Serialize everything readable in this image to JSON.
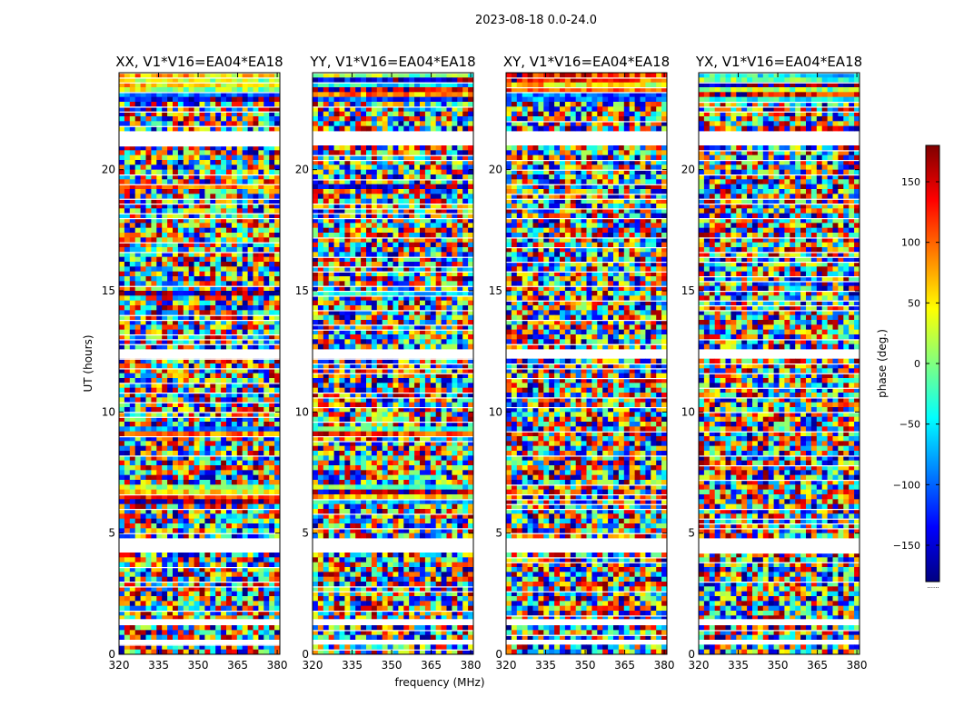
{
  "chart_data": {
    "type": "heatmap",
    "title": "2023-08-18 0.0-24.0",
    "xlabel": "frequency (MHz)",
    "ylabel": "UT (hours)",
    "xlim": [
      320,
      381
    ],
    "ylim": [
      0,
      24
    ],
    "xticks": [
      320,
      335,
      350,
      365,
      380
    ],
    "yticks": [
      0,
      5,
      10,
      15,
      20
    ],
    "colormap": "jet",
    "colorbar": {
      "label": "phase (deg.)",
      "range": [
        -180,
        180
      ],
      "ticks": [
        150,
        100,
        50,
        0,
        -50,
        -100,
        -150
      ],
      "tick_labels": [
        "150",
        "100",
        "50",
        "0",
        "−50",
        "−100",
        "−150"
      ],
      "footer": "......"
    },
    "panels": [
      {
        "title": "XX, V1*V16=EA04*EA18",
        "polarization": "XX",
        "coherent_bands_hours": [
          [
            22.9,
            24.0
          ],
          [
            19.2,
            19.35
          ],
          [
            14.75,
            14.95
          ],
          [
            9.1,
            9.45
          ],
          [
            6.2,
            6.9
          ]
        ]
      },
      {
        "title": "YY, V1*V16=EA04*EA18",
        "polarization": "YY",
        "coherent_bands_hours": [
          [
            22.9,
            24.0
          ],
          [
            19.2,
            19.35
          ],
          [
            14.75,
            14.95
          ],
          [
            9.1,
            9.45
          ],
          [
            6.2,
            6.9
          ]
        ]
      },
      {
        "title": "XY, V1*V16=EA04*EA18",
        "polarization": "XY",
        "coherent_bands_hours": [
          [
            22.8,
            24.0
          ]
        ]
      },
      {
        "title": "YX, V1*V16=EA04*EA18",
        "polarization": "YX",
        "coherent_bands_hours": [
          [
            22.8,
            24.0
          ]
        ]
      }
    ],
    "flagged_gaps_hours": [
      [
        21.0,
        21.55
      ],
      [
        12.3,
        12.5
      ],
      [
        4.3,
        4.7
      ],
      [
        1.2,
        1.45
      ],
      [
        0.45,
        0.6
      ]
    ]
  }
}
